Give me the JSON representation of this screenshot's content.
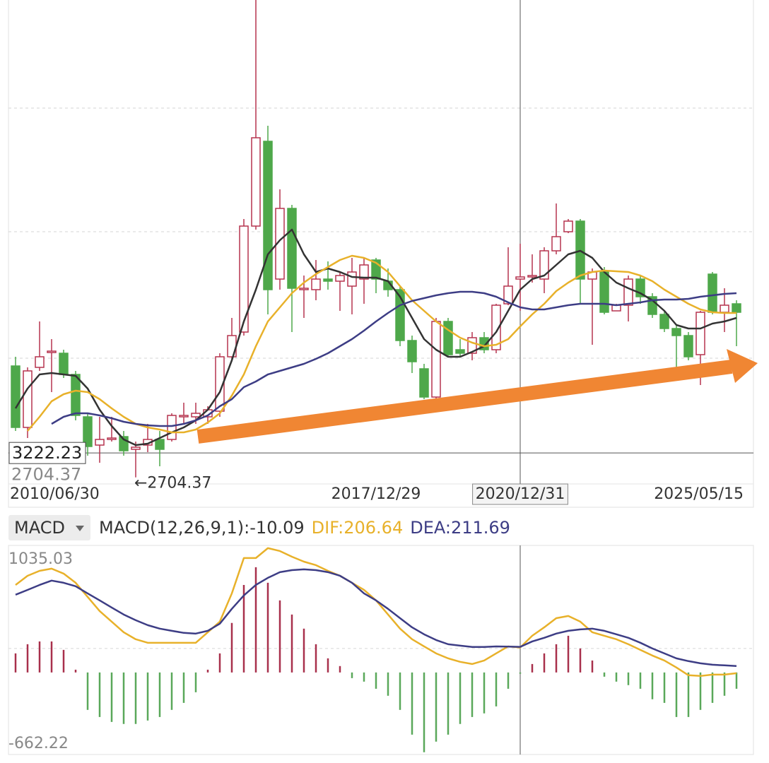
{
  "chart_data": [
    {
      "type": "candlestick",
      "categories": [
        "2010/06/30",
        null,
        null,
        null,
        null,
        null,
        null,
        null,
        null,
        null,
        null,
        null,
        null,
        null,
        null,
        null,
        null,
        null,
        null,
        null,
        null,
        null,
        null,
        null,
        null,
        null,
        null,
        null,
        null,
        null,
        "2017/12/29",
        null,
        null,
        null,
        null,
        null,
        null,
        null,
        null,
        null,
        null,
        null,
        "2020/12/31",
        null,
        null,
        null,
        null,
        null,
        null,
        null,
        null,
        null,
        null,
        null,
        null,
        null,
        null,
        null,
        null,
        null,
        "2025/05/15"
      ],
      "open": [
        5070,
        3765,
        5040,
        5355,
        5340,
        4890,
        3990,
        3390,
        3510,
        3570,
        3300,
        3390,
        3510,
        3510,
        3990,
        3990,
        3990,
        4110,
        5265,
        5790,
        8040,
        9840,
        6915,
        8415,
        6690,
        6690,
        6915,
        6870,
        6765,
        6915,
        7320,
        6870,
        6690,
        5610,
        5010,
        4410,
        6015,
        5415,
        5340,
        5670,
        5415,
        6390,
        6915,
        6960,
        6915,
        7515,
        7920,
        8145,
        6915,
        7065,
        6240,
        6360,
        6915,
        6540,
        6165,
        5865,
        5715,
        5310,
        7020,
        6210,
        6390
      ],
      "close": [
        3765,
        4965,
        5265,
        5385,
        4890,
        4020,
        3360,
        3510,
        3540,
        3270,
        3345,
        3510,
        3300,
        4020,
        4020,
        4065,
        4140,
        5265,
        5715,
        8040,
        9915,
        6690,
        8415,
        6720,
        6720,
        6915,
        6870,
        6990,
        7065,
        7215,
        6915,
        6690,
        5610,
        5160,
        4410,
        6015,
        5310,
        5340,
        5670,
        5415,
        6360,
        6765,
        6960,
        6990,
        7515,
        7815,
        8145,
        6915,
        7065,
        6210,
        6360,
        6915,
        6540,
        6165,
        5865,
        5715,
        5265,
        6210,
        6210,
        6360,
        6210
      ],
      "high": [
        5265,
        5040,
        6015,
        5640,
        5415,
        4965,
        4065,
        3990,
        3990,
        3690,
        3465,
        3840,
        3690,
        4065,
        4290,
        4290,
        4215,
        5340,
        6090,
        8190,
        12840,
        10170,
        8820,
        8490,
        6990,
        7320,
        7290,
        7065,
        7365,
        7365,
        7365,
        7140,
        6765,
        5715,
        5115,
        6090,
        6090,
        5640,
        5790,
        5790,
        6390,
        7590,
        7665,
        7440,
        7590,
        8520,
        8190,
        8190,
        7140,
        7170,
        6390,
        6990,
        6990,
        6615,
        6240,
        5940,
        5790,
        6240,
        7065,
        6720,
        6465
      ],
      "low": [
        3690,
        3540,
        4965,
        4515,
        4815,
        3915,
        3165,
        3015,
        3465,
        3165,
        2704.37,
        3240,
        2940,
        3465,
        3840,
        3840,
        3840,
        3990,
        5190,
        5715,
        7965,
        6165,
        6690,
        5790,
        6090,
        6465,
        6690,
        6240,
        6165,
        6390,
        6615,
        6540,
        5490,
        4920,
        4365,
        4365,
        5265,
        5265,
        5190,
        5340,
        5340,
        6360,
        6240,
        6840,
        6615,
        7440,
        7890,
        6390,
        5520,
        6165,
        6240,
        6015,
        6390,
        6090,
        5790,
        4890,
        5190,
        4665,
        6165,
        5790,
        5490
      ],
      "up_color": "#b5344f",
      "down_color": "#4ea84a",
      "series": [
        {
          "color": "#333333",
          "values": [
            4170,
            4590,
            4890,
            4920,
            4890,
            4860,
            4590,
            4140,
            3795,
            3510,
            3390,
            3420,
            3540,
            3660,
            3765,
            3915,
            4140,
            4515,
            5190,
            6015,
            6690,
            7440,
            7740,
            7965,
            7440,
            7065,
            7140,
            7065,
            6960,
            6945,
            6945,
            6870,
            6540,
            6090,
            5640,
            5415,
            5265,
            5265,
            5370,
            5490,
            5790,
            6240,
            6690,
            6915,
            6990,
            7215,
            7440,
            7515,
            7365,
            7065,
            6840,
            6720,
            6615,
            6465,
            6240,
            5940,
            5865,
            5865,
            5970,
            6015,
            6090
          ]
        },
        {
          "color": "#e8b12a",
          "values": [
            null,
            3690,
            3990,
            4320,
            4470,
            4545,
            4515,
            4365,
            4170,
            3990,
            3840,
            3765,
            3720,
            3660,
            3660,
            3720,
            3870,
            4065,
            4440,
            4890,
            5490,
            6015,
            6315,
            6615,
            6840,
            7020,
            7170,
            7320,
            7410,
            7365,
            7260,
            7065,
            6765,
            6465,
            6240,
            6015,
            5835,
            5670,
            5565,
            5490,
            5520,
            5640,
            5910,
            6165,
            6390,
            6660,
            6840,
            6990,
            7065,
            7095,
            7080,
            7065,
            6990,
            6870,
            6690,
            6540,
            6390,
            6270,
            6210,
            6195,
            6195
          ]
        },
        {
          "color": "#3d3d85",
          "values": [
            null,
            null,
            null,
            3840,
            3990,
            4065,
            4065,
            4020,
            3960,
            3885,
            3840,
            3810,
            3795,
            3795,
            3840,
            3915,
            4020,
            4215,
            4365,
            4620,
            4740,
            4890,
            4965,
            5040,
            5115,
            5220,
            5340,
            5490,
            5640,
            5820,
            6015,
            6195,
            6360,
            6450,
            6510,
            6570,
            6615,
            6645,
            6645,
            6615,
            6540,
            6420,
            6315,
            6270,
            6270,
            6315,
            6360,
            6390,
            6390,
            6390,
            6360,
            6390,
            6420,
            6465,
            6480,
            6480,
            6495,
            6540,
            6570,
            6600,
            6615
          ]
        }
      ],
      "ylim": [
        2565,
        12840
      ],
      "grid_lines": [
        10545,
        7920,
        5235
      ],
      "crosshair": {
        "index": 42,
        "y": 3222.23
      },
      "low_marker": {
        "label": "←2704.37"
      }
    },
    {
      "type": "macd",
      "indicator": "MACD",
      "header": [
        {
          "label": "MACD(12,26,9,1):",
          "value": -10.09,
          "color": "#333333"
        },
        {
          "label": "DIF:",
          "value": 206.64,
          "color": "#e8b12a"
        },
        {
          "label": "DEA:",
          "value": 211.69,
          "color": "#3d3d85"
        }
      ],
      "histogram": [
        158,
        234,
        257,
        257,
        187,
        23,
        -310,
        -369,
        -410,
        -427,
        -427,
        -398,
        -369,
        -310,
        -252,
        -164,
        23,
        158,
        410,
        725,
        872,
        743,
        597,
        480,
        363,
        234,
        117,
        53,
        -47,
        -76,
        -135,
        -193,
        -310,
        -515,
        -661,
        -573,
        -515,
        -427,
        -369,
        -339,
        -281,
        -135,
        -10,
        70,
        158,
        234,
        304,
        199,
        99,
        -35,
        -76,
        -105,
        -135,
        -222,
        -252,
        -369,
        -369,
        -310,
        -252,
        -193,
        -135
      ],
      "up_color": "#a8304c",
      "down_color": "#5aa85a",
      "series": [
        {
          "color": "#e8b12a",
          "values": [
            725,
            801,
            842,
            860,
            819,
            743,
            626,
            509,
            421,
            333,
            275,
            246,
            246,
            246,
            246,
            246,
            333,
            421,
            655,
            948,
            948,
            1030,
            1006,
            959,
            918,
            889,
            842,
            801,
            743,
            684,
            597,
            480,
            363,
            275,
            216,
            158,
            117,
            88,
            70,
            99,
            158,
            216,
            207,
            304,
            374,
            450,
            468,
            421,
            333,
            304,
            275,
            234,
            187,
            140,
            99,
            41,
            -23,
            -29,
            -18,
            -18,
            -6
          ]
        },
        {
          "color": "#3d3d85",
          "values": [
            644,
            684,
            725,
            761,
            743,
            714,
            655,
            597,
            538,
            480,
            433,
            392,
            363,
            345,
            328,
            322,
            345,
            404,
            527,
            638,
            725,
            784,
            831,
            848,
            854,
            848,
            831,
            801,
            743,
            655,
            597,
            527,
            450,
            374,
            316,
            269,
            234,
            222,
            211,
            211,
            216,
            214,
            212,
            257,
            287,
            322,
            345,
            357,
            363,
            345,
            316,
            287,
            246,
            199,
            158,
            117,
            94,
            76,
            64,
            59,
            53
          ]
        }
      ],
      "ylim": [
        -662.22,
        1035.03
      ],
      "yticks": [
        -662.22,
        1035.03
      ],
      "grid_lines": [
        199
      ]
    }
  ]
}
